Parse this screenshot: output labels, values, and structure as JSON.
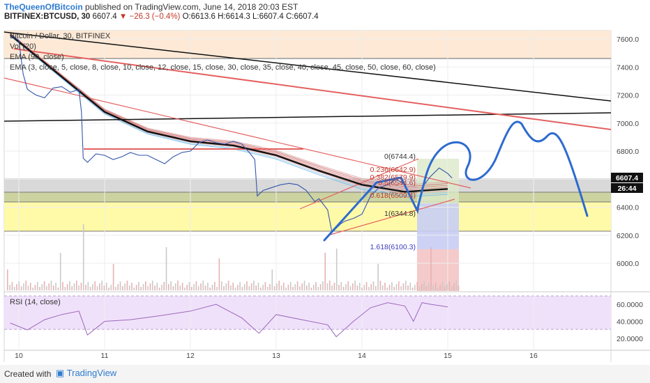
{
  "header": {
    "author": "TheQueenOfBitcoin",
    "published_text": "published on TradingView.com, June 14, 2018 20:03 EST"
  },
  "symbol_line": {
    "symbol": "BITFINEX:BTCUSD, 30",
    "last": "6607.4",
    "change": "▼ −26.3 (−0.4%)",
    "open": "O:6613.6",
    "high": "H:6614.3",
    "low": "L:6607.4",
    "close": "C:6607.4"
  },
  "legend": {
    "title": "Bitcoin / Dollar, 30, BITFINEX",
    "vol": "Vol (20)",
    "ema": "EMA (90, close)",
    "ema_ribbon": "EMA (3, close, 5, close, 8, close, 10, close, 12, close, 15, close, 30, close, 35, close, 40, close, 45, close, 50, close, 60, close)"
  },
  "rsi_label": "RSI (14, close)",
  "price_tag": "6607.4",
  "time_tag": "26:44",
  "colors": {
    "ema_black": "#111111",
    "trend_red": "#e46060",
    "drawing_blue": "#2d6ad0",
    "price_line": "#3355aa",
    "rsi_line": "#9a68b8",
    "zone_yellow": "#fffaa8",
    "zone_orange": "#fde9d6",
    "rsi_band": "#f0e1fb"
  },
  "chart_data": [
    {
      "type": "line",
      "title": "Bitcoin / Dollar, 30, BITFINEX",
      "xlabel": "",
      "ylabel": "",
      "x_ticks": [
        "10",
        "11",
        "12",
        "13",
        "14",
        "15",
        "16"
      ],
      "y_ticks": [
        "6000.0",
        "6200.0",
        "6400.0",
        "6600.0",
        "6800.0",
        "7000.0",
        "7200.0",
        "7400.0",
        "7600.0"
      ],
      "ylim": [
        5850,
        7650
      ],
      "grid": true,
      "series": [
        {
          "x": [
            9.9,
            10.0,
            10.05,
            10.1,
            10.2,
            10.3,
            10.4,
            10.5,
            10.6,
            10.7,
            10.73,
            10.75,
            10.8,
            10.9,
            11.0,
            11.1,
            11.2,
            11.3,
            11.4,
            11.5,
            11.6,
            11.7,
            11.8,
            11.9,
            12.0,
            12.1,
            12.2,
            12.3,
            12.4,
            12.5,
            12.6,
            12.7,
            12.75,
            12.78,
            12.85,
            12.95,
            13.05,
            13.15,
            13.25,
            13.35,
            13.45,
            13.5,
            13.6,
            13.65,
            13.7,
            13.75,
            13.8,
            13.9,
            14.0,
            14.1,
            14.2,
            14.3,
            14.4,
            14.5,
            14.6,
            14.65,
            14.7,
            14.8,
            14.9,
            15.0,
            15.05
          ],
          "values": [
            7630,
            7590,
            7350,
            7240,
            7200,
            7180,
            7250,
            7260,
            7220,
            7240,
            7080,
            6750,
            6720,
            6780,
            6770,
            6740,
            6760,
            6790,
            6770,
            6770,
            6740,
            6710,
            6760,
            6790,
            6800,
            6860,
            6880,
            6860,
            6850,
            6870,
            6850,
            6780,
            6740,
            6480,
            6520,
            6540,
            6560,
            6570,
            6560,
            6520,
            6440,
            6460,
            6380,
            6220,
            6250,
            6280,
            6300,
            6320,
            6350,
            6480,
            6540,
            6560,
            6600,
            6560,
            6440,
            6360,
            6540,
            6620,
            6680,
            6640,
            6607
          ]
        },
        {
          "name": "EMA (90, close)",
          "x": [
            9.9,
            10.5,
            11.0,
            11.5,
            12.0,
            12.5,
            13.0,
            13.5,
            14.0,
            14.5,
            15.0
          ],
          "values": [
            7630,
            7330,
            7080,
            6940,
            6870,
            6840,
            6770,
            6660,
            6560,
            6510,
            6530
          ]
        }
      ],
      "annotations": [
        "0(6744.4)",
        "0.236(6642.9)",
        "0.382(6579.9)",
        "0.5(6544.6)",
        "0.618(6509.4)",
        "1(6344.8)",
        "1.618(6100.3)"
      ]
    },
    {
      "type": "line",
      "title": "RSI (14, close)",
      "y_ticks": [
        "20.0000",
        "40.0000",
        "60.0000"
      ],
      "ylim": [
        12,
        72
      ],
      "series": [
        {
          "x": [
            9.9,
            10.1,
            10.3,
            10.5,
            10.7,
            10.8,
            11.0,
            11.3,
            11.6,
            12.0,
            12.3,
            12.6,
            12.8,
            13.0,
            13.3,
            13.6,
            13.7,
            13.9,
            14.1,
            14.3,
            14.5,
            14.6,
            14.7,
            14.8,
            15.0
          ],
          "values": [
            38,
            30,
            42,
            48,
            52,
            24,
            40,
            42,
            46,
            52,
            60,
            44,
            26,
            48,
            42,
            36,
            22,
            40,
            56,
            62,
            58,
            40,
            62,
            60,
            57
          ]
        }
      ]
    }
  ]
}
